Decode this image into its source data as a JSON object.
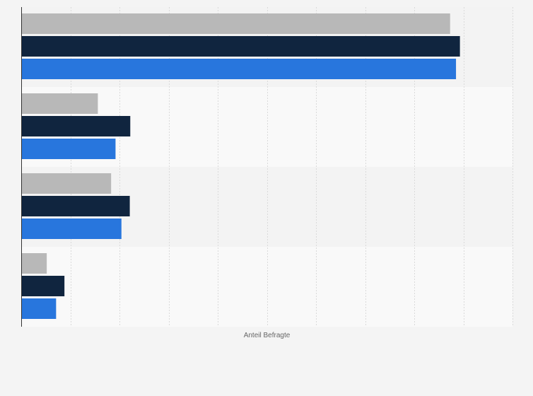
{
  "chart_data": {
    "type": "bar",
    "orientation": "horizontal",
    "title": "",
    "xlabel": "Anteil Befragte",
    "ylabel": "",
    "categories": [
      "",
      "",
      "",
      ""
    ],
    "series": [
      {
        "values": [
          87.3,
          15.6,
          18.3,
          5.2
        ]
      },
      {
        "values": [
          89.3,
          22.2,
          22.1,
          8.8
        ]
      },
      {
        "values": [
          88.5,
          19.2,
          20.4,
          7.1
        ]
      }
    ],
    "xlim": [
      0,
      100
    ],
    "x_gridlines": [
      10,
      20,
      30,
      40,
      50,
      60,
      70,
      80,
      90,
      100
    ],
    "grid": true,
    "legend": "none",
    "colors": {
      "series": [
        "#b8b8b8",
        "#10253f",
        "#2876dd"
      ],
      "band_a": "#f3f3f3",
      "band_b": "#f9f9f9",
      "grid": "#dadada",
      "axis": "#333333",
      "background": "#f4f4f4"
    }
  }
}
